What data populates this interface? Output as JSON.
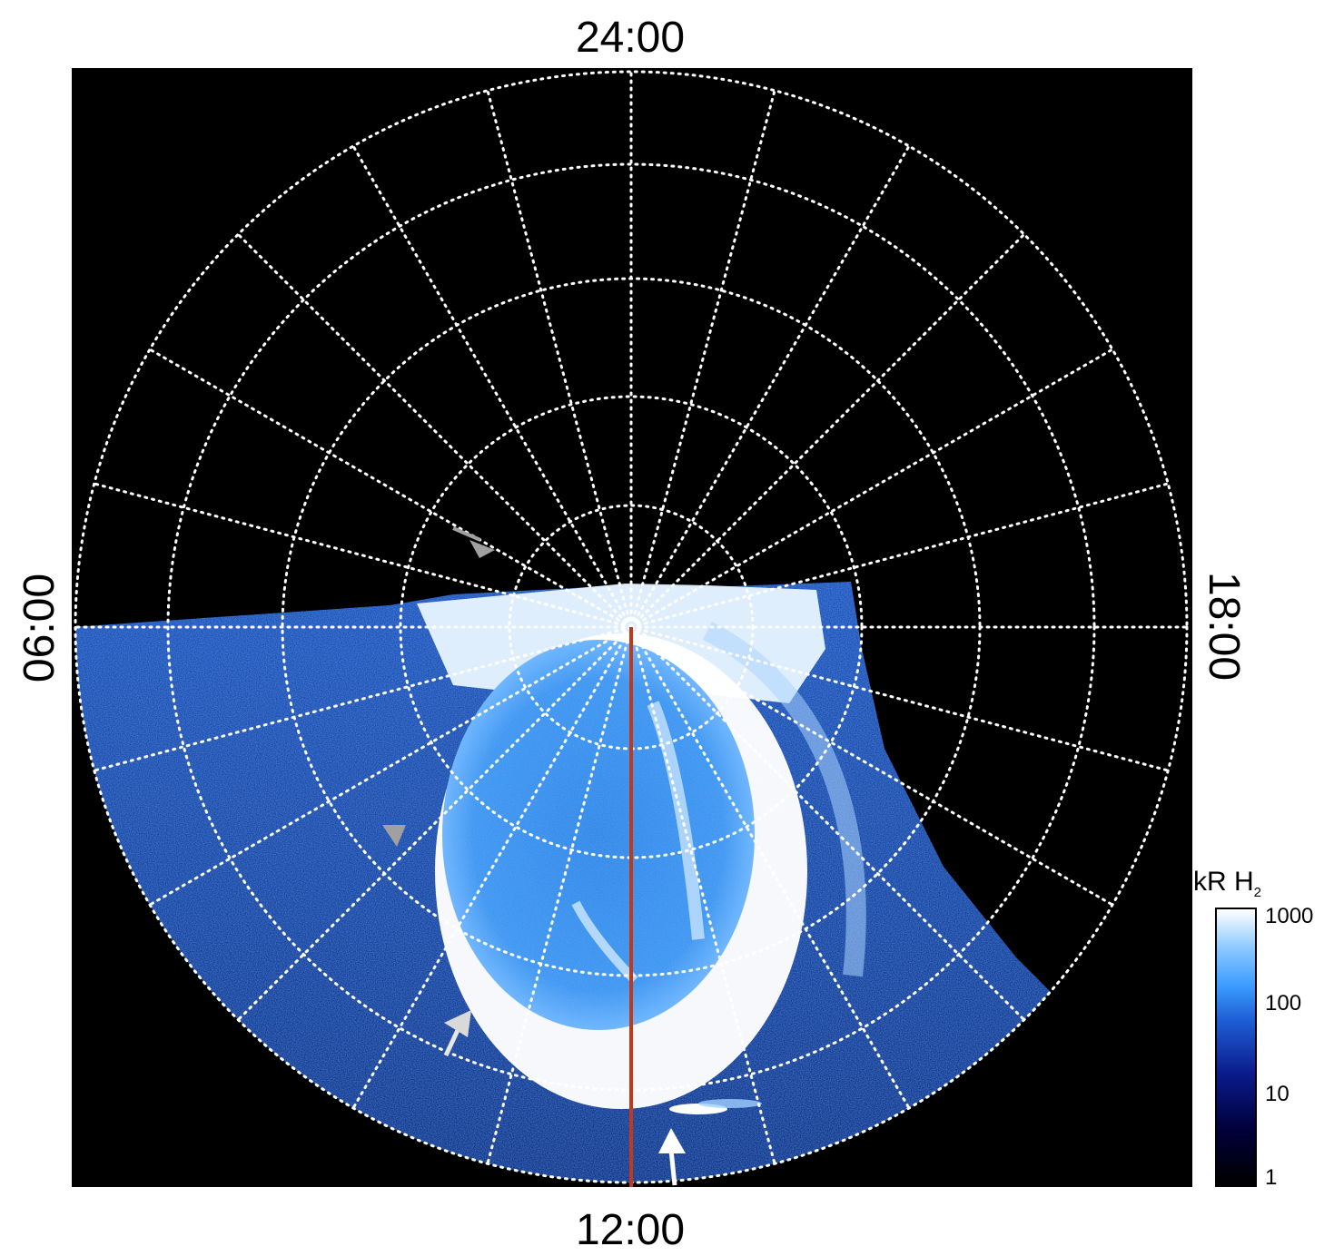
{
  "labels": {
    "top": "24:00",
    "bottom": "12:00",
    "left": "06:00",
    "right": "18:00"
  },
  "colorbar": {
    "title_main": "kR H",
    "title_sub": "2",
    "ticks": [
      "1000",
      "100",
      "10",
      "1"
    ],
    "colors": [
      "#000000",
      "#0a1a8a",
      "#3a9bff",
      "#ffffff"
    ]
  },
  "colors": {
    "background": "#000000",
    "grid": "#ffffff",
    "meridian_line": "#c0391b",
    "arrow_gray": "#a0a0a0",
    "arrow_white": "#ffffff"
  }
}
